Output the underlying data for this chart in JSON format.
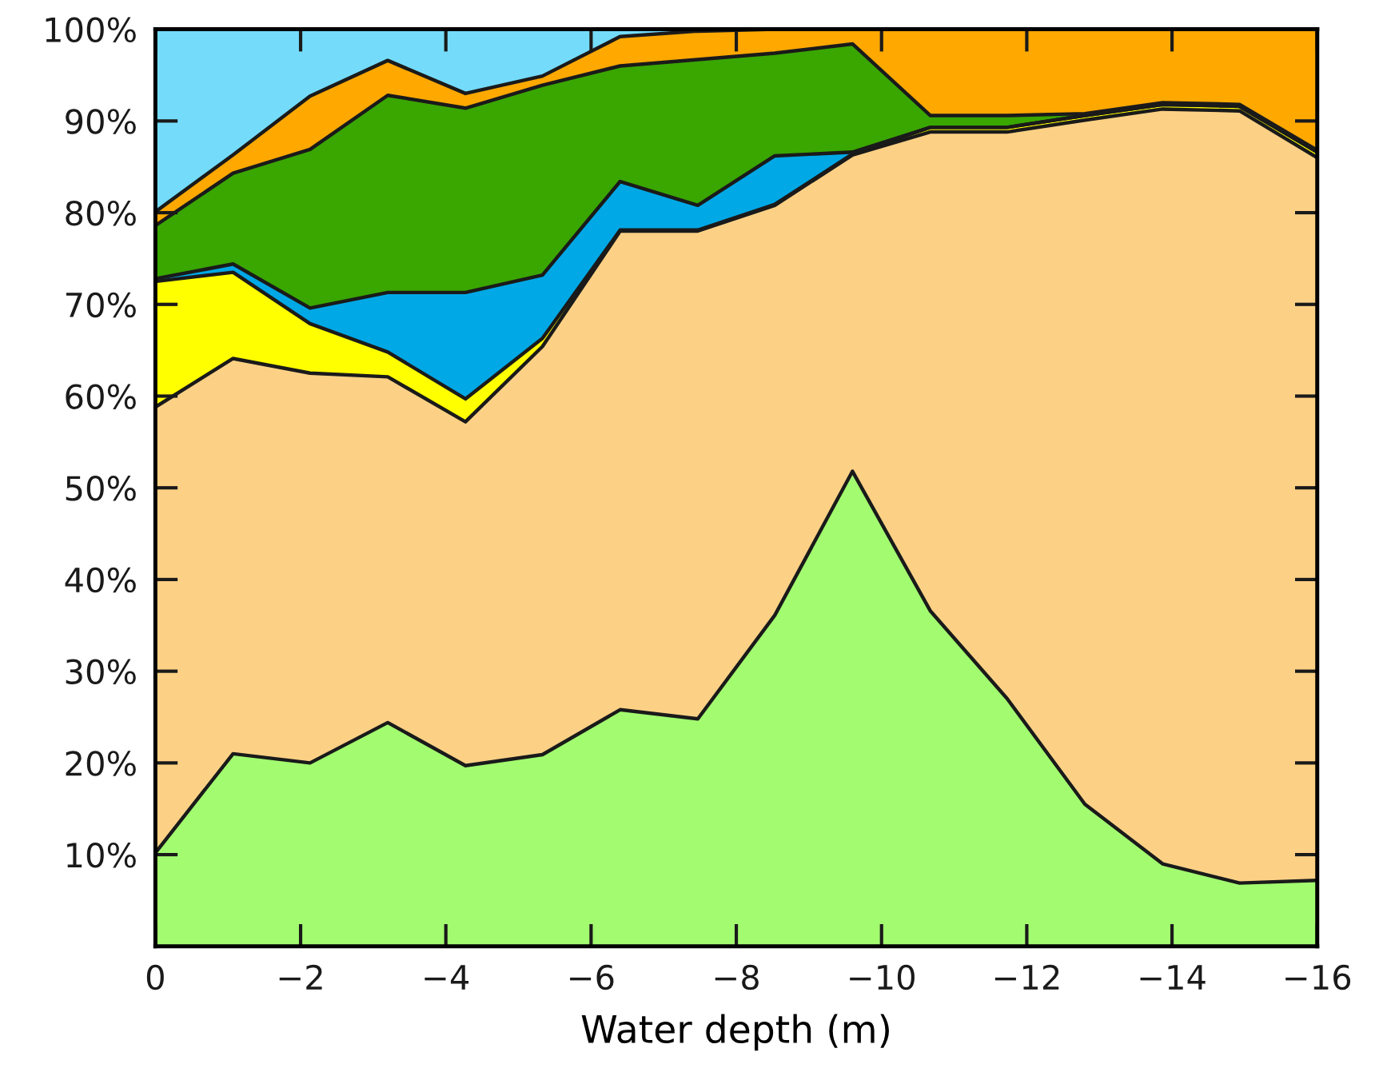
{
  "chart_data": {
    "type": "area",
    "stacked": true,
    "xlabel": "Water depth (m)",
    "x": [
      0,
      -1.07,
      -2.13,
      -3.2,
      -4.27,
      -5.33,
      -6.4,
      -7.47,
      -8.53,
      -9.6,
      -10.67,
      -11.73,
      -12.8,
      -13.87,
      -14.93,
      -16
    ],
    "series": [
      {
        "color": "#a3fc70",
        "values": [
          10.2,
          21.0,
          20.0,
          24.4,
          19.7,
          20.9,
          25.8,
          24.8,
          36.1,
          51.8,
          36.6,
          27.0,
          15.5,
          9.0,
          6.9,
          7.2
        ]
      },
      {
        "color": "#fdd185",
        "values": [
          48.6,
          43.1,
          42.5,
          37.7,
          37.5,
          44.5,
          52.2,
          53.2,
          44.7,
          34.5,
          52.2,
          61.8,
          74.6,
          82.3,
          84.2,
          78.8
        ]
      },
      {
        "color": "#ffff00",
        "values": [
          13.7,
          9.4,
          5.4,
          2.7,
          2.5,
          0.9,
          0.1,
          0.1,
          0.1,
          0.1,
          0.5,
          0.5,
          0.5,
          0.5,
          0.5,
          0.6
        ]
      },
      {
        "color": "#00a8e6",
        "values": [
          0.3,
          0.9,
          1.7,
          6.5,
          11.6,
          6.9,
          5.3,
          2.7,
          5.3,
          0.2,
          0,
          0,
          0,
          0,
          0,
          0
        ]
      },
      {
        "color": "#3aa600",
        "values": [
          5.8,
          9.9,
          17.3,
          21.5,
          20.1,
          20.7,
          12.6,
          15.9,
          11.2,
          11.8,
          1.3,
          1.3,
          0.2,
          0.2,
          0.2,
          0.2
        ]
      },
      {
        "color": "#ffa800",
        "values": [
          1.5,
          2.0,
          5.8,
          3.8,
          1.6,
          1.0,
          3.2,
          3.1,
          2.6,
          1.6,
          9.4,
          9.4,
          9.2,
          8.0,
          8.2,
          13.2
        ]
      },
      {
        "color": "#74dcfa",
        "values": [
          19.9,
          13.7,
          7.3,
          3.4,
          7.0,
          5.1,
          0.8,
          0.2,
          0,
          0,
          0,
          0,
          0,
          0,
          0,
          0
        ]
      }
    ],
    "xlim": [
      0,
      -16
    ],
    "ylim": [
      0,
      100
    ],
    "xticks": [
      0,
      {
        "value": -2,
        "label": "−2"
      },
      {
        "value": -4,
        "label": "−4"
      },
      {
        "value": -6,
        "label": "−6"
      },
      {
        "value": -8,
        "label": "−8"
      },
      {
        "value": -10,
        "label": "−10"
      },
      {
        "value": -12,
        "label": "−12"
      },
      {
        "value": -14,
        "label": "−14"
      },
      {
        "value": -16,
        "label": "−16"
      }
    ],
    "yticks": [
      {
        "value": 10,
        "label": "10%"
      },
      {
        "value": 20,
        "label": "20%"
      },
      {
        "value": 30,
        "label": "30%"
      },
      {
        "value": 40,
        "label": "40%"
      },
      {
        "value": 50,
        "label": "50%"
      },
      {
        "value": 60,
        "label": "60%"
      },
      {
        "value": 70,
        "label": "70%"
      },
      {
        "value": 80,
        "label": "80%"
      },
      {
        "value": 90,
        "label": "90%"
      },
      {
        "value": 100,
        "label": "100%"
      }
    ],
    "grid": false,
    "legend": false
  }
}
